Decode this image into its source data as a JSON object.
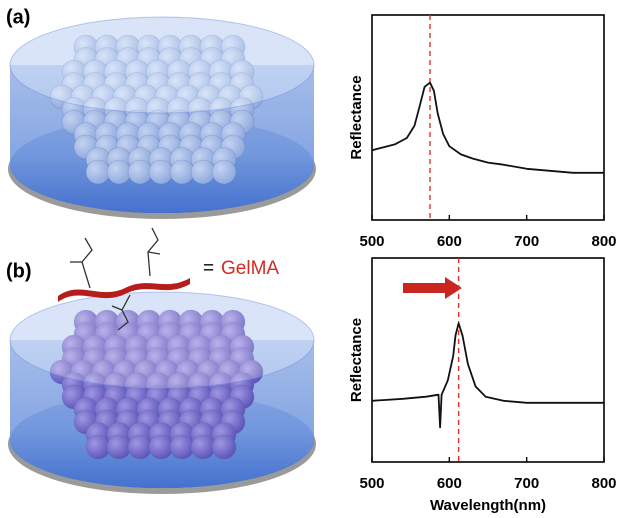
{
  "panels": [
    {
      "label": "(a)"
    },
    {
      "label": "(b)"
    }
  ],
  "legend": {
    "equals": "=",
    "name": "GelMA"
  },
  "chart_data": [
    {
      "type": "line",
      "xlabel": null,
      "ylabel": "Reflectance",
      "x": [
        500,
        510,
        530,
        545,
        555,
        562,
        568,
        575,
        580,
        585,
        592,
        600,
        615,
        630,
        650,
        670,
        700,
        730,
        760,
        800
      ],
      "values": [
        0.34,
        0.35,
        0.37,
        0.4,
        0.46,
        0.56,
        0.65,
        0.67,
        0.63,
        0.52,
        0.42,
        0.36,
        0.32,
        0.3,
        0.28,
        0.27,
        0.25,
        0.24,
        0.23,
        0.23
      ],
      "color": "#111111",
      "xlim": [
        500,
        800
      ],
      "ylim": [
        0,
        1
      ],
      "xticks": [
        500,
        600,
        700,
        800
      ],
      "vline": 575,
      "vline_color": "#e0302a"
    },
    {
      "type": "line",
      "xlabel": "Wavelength(nm)",
      "ylabel": "Reflectance",
      "x": [
        500,
        540,
        570,
        586,
        588,
        590,
        598,
        605,
        608,
        612,
        617,
        624,
        634,
        647,
        670,
        700,
        740,
        800
      ],
      "values": [
        0.3,
        0.31,
        0.32,
        0.33,
        0.17,
        0.33,
        0.4,
        0.52,
        0.62,
        0.68,
        0.62,
        0.48,
        0.37,
        0.32,
        0.3,
        0.29,
        0.29,
        0.29
      ],
      "color": "#111111",
      "xlim": [
        500,
        800
      ],
      "ylim": [
        0,
        1
      ],
      "xticks": [
        500,
        600,
        700,
        800
      ],
      "vline": 612,
      "vline_color": "#e0302a"
    }
  ]
}
